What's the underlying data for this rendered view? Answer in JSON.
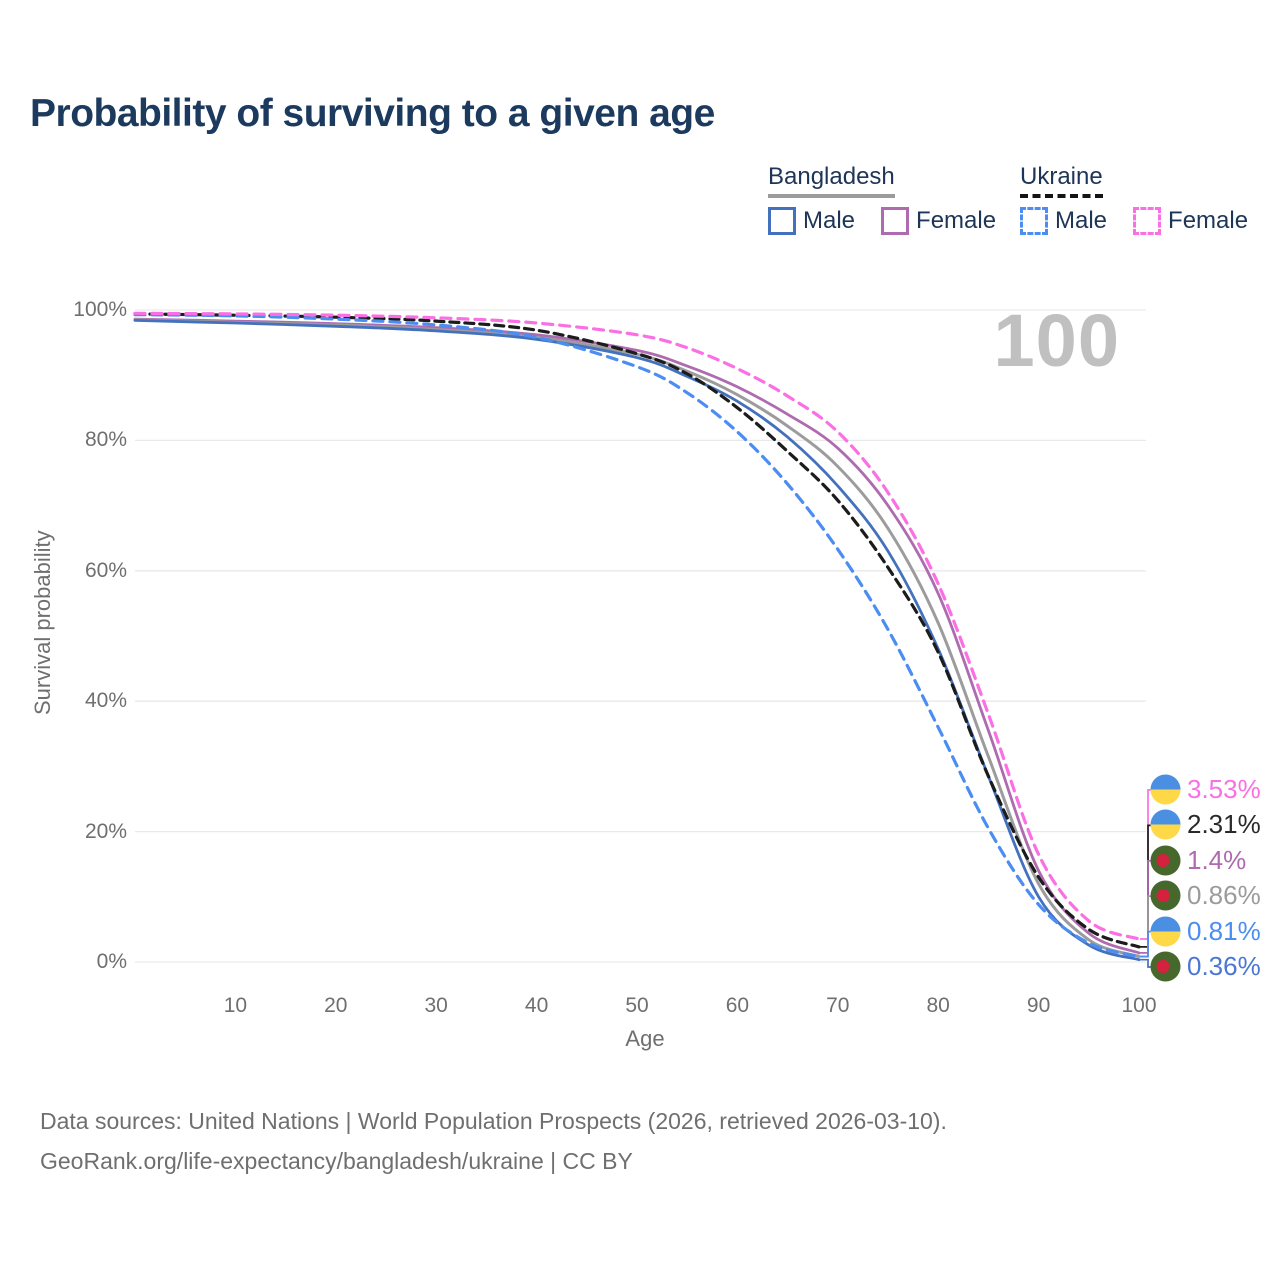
{
  "title": "Probability of surviving to a given age",
  "legend": {
    "groups": [
      {
        "label": "Bangladesh",
        "line_style": "solid",
        "underline_color": "#9b9b9b",
        "items": [
          {
            "label": "Male",
            "color": "#4471bd"
          },
          {
            "label": "Female",
            "color": "#ae6bb0"
          }
        ]
      },
      {
        "label": "Ukraine",
        "line_style": "dashed",
        "underline_color": "#141414",
        "items": [
          {
            "label": "Male",
            "color": "#4c8df2"
          },
          {
            "label": "Female",
            "color": "#fa70e4"
          }
        ]
      }
    ]
  },
  "hover_age_watermark": "100",
  "axes": {
    "y_label": "Survival probability",
    "x_label": "Age",
    "y_ticks": [
      "0%",
      "20%",
      "40%",
      "60%",
      "80%",
      "100%"
    ],
    "x_ticks": [
      "10",
      "20",
      "30",
      "40",
      "50",
      "60",
      "70",
      "80",
      "90",
      "100"
    ]
  },
  "chart_data": {
    "type": "line",
    "title": "Probability of surviving to a given age",
    "xlabel": "Age",
    "ylabel": "Survival probability",
    "xlim": [
      0,
      100
    ],
    "ylim": [
      0,
      100
    ],
    "grid": true,
    "legend_position": "top-right",
    "x": [
      0,
      10,
      20,
      30,
      40,
      50,
      55,
      60,
      65,
      70,
      75,
      80,
      85,
      90,
      95,
      100
    ],
    "series": [
      {
        "name": "Bangladesh Female",
        "country": "Bangladesh",
        "sex": "Female",
        "color": "#ae6bb0",
        "dashed": false,
        "flag": "bangladesh-flag-icon",
        "end_label": "1.4%",
        "end_value": 1.4,
        "label_color": "#ae6bb0",
        "values": [
          98.6,
          98.3,
          97.9,
          97.3,
          96.2,
          93.8,
          91.4,
          88.2,
          84.0,
          78.8,
          70.0,
          56.5,
          35.5,
          14.0,
          4.4,
          1.4
        ]
      },
      {
        "name": "Bangladesh (both sexes)",
        "country": "Bangladesh",
        "sex": "Both",
        "color": "#9c9c9c",
        "dashed": false,
        "flag": "bangladesh-flag-icon",
        "end_label": "0.86%",
        "end_value": 0.86,
        "label_color": "#9b9b9b",
        "values": [
          98.5,
          98.1,
          97.7,
          97.0,
          95.8,
          93.2,
          90.6,
          87.0,
          82.2,
          76.0,
          66.5,
          52.0,
          31.5,
          12.0,
          3.4,
          0.86
        ]
      },
      {
        "name": "Bangladesh Male",
        "country": "Bangladesh",
        "sex": "Male",
        "color": "#4471bd",
        "dashed": false,
        "flag": "bangladesh-flag-icon",
        "end_label": "0.36%",
        "end_value": 0.36,
        "label_color": "#4a77d4",
        "values": [
          98.4,
          98.0,
          97.5,
          96.8,
          95.5,
          92.7,
          89.8,
          86.0,
          80.5,
          73.0,
          63.0,
          48.0,
          28.5,
          10.0,
          2.6,
          0.36
        ]
      },
      {
        "name": "Ukraine (both sexes)",
        "country": "Ukraine",
        "sex": "Both",
        "color": "#1c1c1c",
        "dashed": true,
        "flag": "ukraine-flag-icon",
        "end_label": "2.31%",
        "end_value": 2.31,
        "label_color": "#2a2a2a",
        "values": [
          99.4,
          99.2,
          98.9,
          98.3,
          96.9,
          93.3,
          90.2,
          85.0,
          78.3,
          70.8,
          60.5,
          47.5,
          28.5,
          13.0,
          5.0,
          2.31
        ]
      },
      {
        "name": "Ukraine Male",
        "country": "Ukraine",
        "sex": "Male",
        "color": "#4c8df2",
        "dashed": true,
        "flag": "ukraine-flag-icon",
        "end_label": "0.81%",
        "end_value": 0.81,
        "label_color": "#4c8df2",
        "values": [
          99.3,
          99.1,
          98.6,
          97.7,
          95.8,
          91.3,
          87.3,
          81.3,
          73.3,
          63.3,
          51.0,
          36.0,
          20.5,
          8.8,
          2.9,
          0.81
        ]
      },
      {
        "name": "Ukraine Female",
        "country": "Ukraine",
        "sex": "Female",
        "color": "#fa70e4",
        "dashed": true,
        "flag": "ukraine-flag-icon",
        "end_label": "3.53%",
        "end_value": 3.53,
        "label_color": "#fa70e4",
        "values": [
          99.5,
          99.4,
          99.2,
          98.8,
          98.0,
          96.2,
          94.2,
          91.0,
          86.8,
          81.3,
          72.0,
          58.0,
          38.0,
          16.5,
          6.3,
          3.53
        ]
      }
    ]
  },
  "flag_colors": {
    "ukraine_blue": "#4b8fe2",
    "ukraine_yellow": "#ffd848",
    "bangladesh_green": "#47682c",
    "bangladesh_red": "#d4213d"
  },
  "footer": {
    "line1": "Data sources: United Nations | World Population Prospects (2026, retrieved 2026-03-10).",
    "line2": "GeoRank.org/life-expectancy/bangladesh/ukraine | CC BY"
  }
}
